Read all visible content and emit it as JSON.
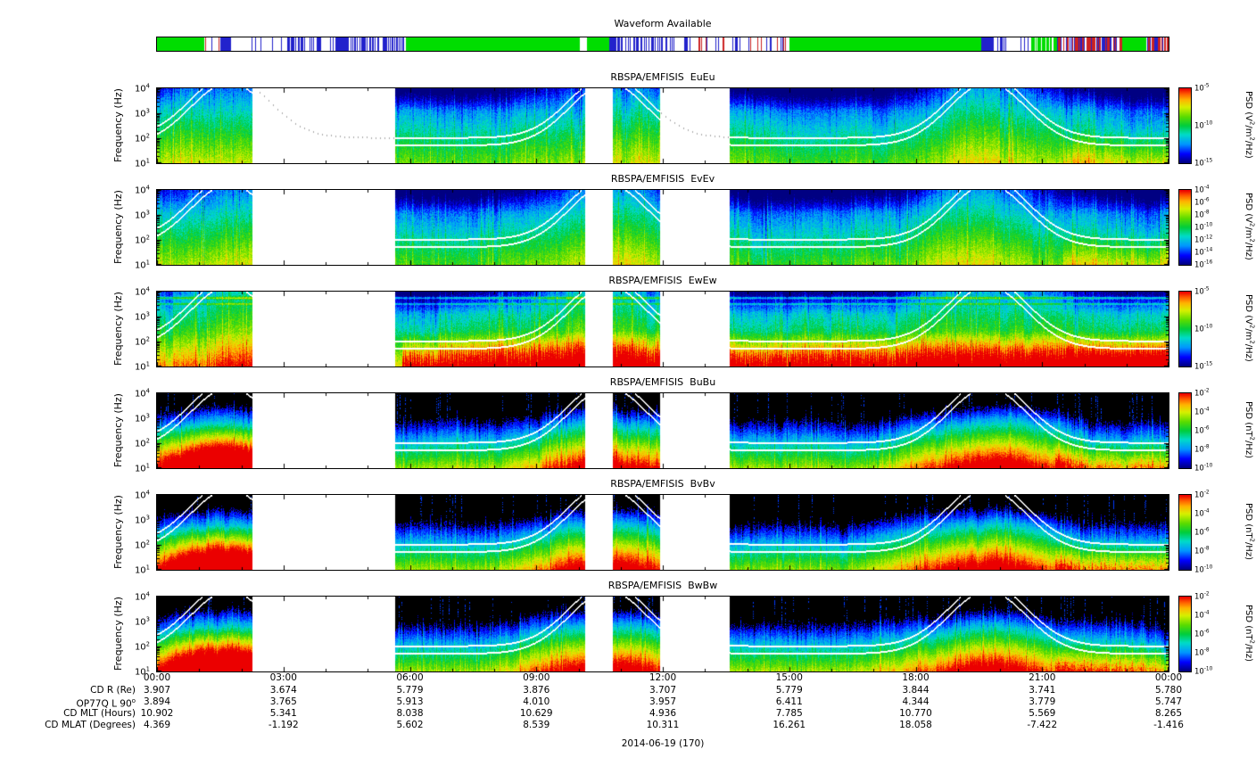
{
  "waveform": {
    "title": "Waveform Available",
    "colors": {
      "green": "#00dd00",
      "blue": "#2222cc",
      "red": "#cc2222",
      "white": "#ffffff"
    },
    "segments": [
      [
        0.0,
        0.047,
        "g"
      ],
      [
        0.047,
        0.063,
        "sr"
      ],
      [
        0.063,
        0.073,
        "b"
      ],
      [
        0.073,
        0.093,
        "w"
      ],
      [
        0.093,
        0.128,
        "sb"
      ],
      [
        0.128,
        0.158,
        "db"
      ],
      [
        0.158,
        0.176,
        "sb"
      ],
      [
        0.176,
        0.19,
        "b"
      ],
      [
        0.19,
        0.246,
        "db"
      ],
      [
        0.246,
        0.418,
        "g"
      ],
      [
        0.418,
        0.425,
        "w"
      ],
      [
        0.425,
        0.447,
        "g"
      ],
      [
        0.447,
        0.5,
        "db"
      ],
      [
        0.5,
        0.535,
        "sb"
      ],
      [
        0.535,
        0.566,
        "sr"
      ],
      [
        0.566,
        0.585,
        "sb"
      ],
      [
        0.585,
        0.625,
        "sr"
      ],
      [
        0.625,
        0.815,
        "g"
      ],
      [
        0.815,
        0.827,
        "b"
      ],
      [
        0.827,
        0.864,
        "sb"
      ],
      [
        0.864,
        0.89,
        "gs"
      ],
      [
        0.89,
        0.954,
        "rb"
      ],
      [
        0.954,
        0.978,
        "g"
      ],
      [
        0.978,
        1.0,
        "rb"
      ]
    ]
  },
  "chart_data": {
    "type": "heatmap",
    "subtype": "spectrogram-stack",
    "title": "",
    "xlabel": "",
    "date": "2014-06-19 (170)",
    "time_ticks": [
      "00:00",
      "03:00",
      "06:00",
      "09:00",
      "12:00",
      "15:00",
      "18:00",
      "21:00",
      "00:00"
    ],
    "x_range_hours": [
      0,
      24
    ],
    "freq_ticks": [
      "10^4",
      "10^3",
      "10^2",
      "10^1"
    ],
    "freq_range_log10": [
      1,
      4
    ],
    "data_gaps_hours": [
      [
        2.25,
        5.65
      ],
      [
        10.15,
        10.8
      ],
      [
        11.93,
        13.58
      ]
    ],
    "perigee_hours": [
      1.7,
      10.7,
      19.7
    ],
    "overlay_lines": [
      "fce",
      "fce/2"
    ],
    "panels": [
      {
        "title": "RBSPA/EMFISIS  EuEu",
        "ylabel": "Frequency (Hz)",
        "unit": "PSD (V^2/m^2/Hz)",
        "style": "E",
        "seed": 1,
        "dotted_gap_curve": true,
        "colorbar_ticks": [
          "10^-5",
          "10^-10",
          "10^-15"
        ],
        "colorbar_range_exp": [
          -5,
          -15
        ]
      },
      {
        "title": "RBSPA/EMFISIS  EvEv",
        "ylabel": "Frequency (Hz)",
        "unit": "PSD (V^2/m^2/Hz)",
        "style": "E",
        "seed": 2,
        "dotted_gap_curve": false,
        "colorbar_ticks": [
          "10^-4",
          "10^-6",
          "10^-8",
          "10^-10",
          "10^-12",
          "10^-14",
          "10^-16"
        ],
        "colorbar_range_exp": [
          -4,
          -16
        ]
      },
      {
        "title": "RBSPA/EMFISIS  EwEw",
        "ylabel": "Frequency (Hz)",
        "unit": "PSD (V^2/m^2/Hz)",
        "style": "Ew",
        "seed": 3,
        "dotted_gap_curve": false,
        "colorbar_ticks": [
          "10^-5",
          "10^-10",
          "10^-15"
        ],
        "colorbar_range_exp": [
          -5,
          -15
        ]
      },
      {
        "title": "RBSPA/EMFISIS  BuBu",
        "ylabel": "Frequency (Hz)",
        "unit": "PSD (nT^2/Hz)",
        "style": "B",
        "seed": 4,
        "dotted_gap_curve": false,
        "colorbar_ticks": [
          "10^-2",
          "10^-4",
          "10^-6",
          "10^-8",
          "10^-10"
        ],
        "colorbar_range_exp": [
          -2,
          -10
        ]
      },
      {
        "title": "RBSPA/EMFISIS  BvBv",
        "ylabel": "Frequency (Hz)",
        "unit": "PSD (nT^2/Hz)",
        "style": "B",
        "seed": 5,
        "dotted_gap_curve": false,
        "colorbar_ticks": [
          "10^-2",
          "10^-4",
          "10^-6",
          "10^-8",
          "10^-10"
        ],
        "colorbar_range_exp": [
          -2,
          -10
        ]
      },
      {
        "title": "RBSPA/EMFISIS  BwBw",
        "ylabel": "Frequency (Hz)",
        "unit": "PSD (nT^2/Hz)",
        "style": "B",
        "seed": 6,
        "dotted_gap_curve": false,
        "colorbar_ticks": [
          "10^-2",
          "10^-4",
          "10^-6",
          "10^-8",
          "10^-10"
        ],
        "colorbar_range_exp": [
          -2,
          -10
        ]
      }
    ],
    "ephemeris": {
      "rows": [
        {
          "label": "CD R (Re)",
          "values": [
            "3.907",
            "3.674",
            "5.779",
            "3.876",
            "3.707",
            "5.779",
            "3.844",
            "3.741",
            "5.780"
          ]
        },
        {
          "label": "OP77Q L 90^o",
          "values": [
            "3.894",
            "3.765",
            "5.913",
            "4.010",
            "3.957",
            "6.411",
            "4.344",
            "3.779",
            "5.747"
          ]
        },
        {
          "label": "CD MLT (Hours)",
          "values": [
            "10.902",
            "5.341",
            "8.038",
            "10.629",
            "4.936",
            "7.785",
            "10.770",
            "5.569",
            "8.265"
          ]
        },
        {
          "label": "CD MLAT (Degrees)",
          "values": [
            "4.369",
            "-1.192",
            "5.602",
            "8.539",
            "10.311",
            "16.261",
            "18.058",
            "-7.422",
            "-1.416"
          ]
        }
      ]
    }
  }
}
